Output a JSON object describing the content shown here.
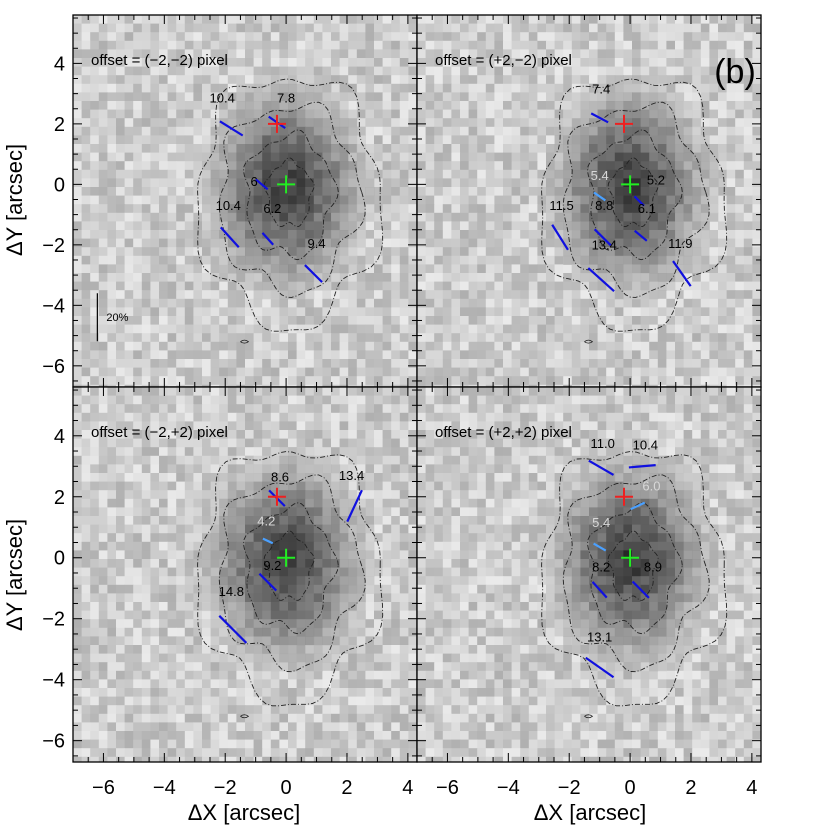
{
  "chart_data": {
    "type": "image-grid",
    "figure_tag": "(b)",
    "xlabel": "ΔX [arcsec]",
    "ylabel": "ΔY [arcsec]",
    "xlim": [
      -7,
      4.3
    ],
    "ylim": [
      -6.7,
      5.6
    ],
    "xticks": [
      -6,
      -4,
      -2,
      0,
      2,
      4
    ],
    "yticks": [
      -6,
      -4,
      -2,
      0,
      2,
      4
    ],
    "xtick_labels": [
      "−6",
      "−4",
      "−2",
      "0",
      "2",
      "4"
    ],
    "ytick_labels": [
      "−6",
      "−4",
      "−2",
      "0",
      "2",
      "4"
    ],
    "colors": {
      "vector": "#1010e0",
      "vector_light": "#4aa0ff",
      "label_dark": "#000000",
      "label_light": "#d8d8d8",
      "center_cross": "#22ee22",
      "secondary_cross": "#ee2020",
      "contour": "#222222"
    },
    "scale_bar": {
      "label": "20%"
    },
    "panels": [
      {
        "id": "a",
        "offset_label": "offset = (−2,−2) pixel",
        "center_cross": [
          0,
          0
        ],
        "secondary_cross": [
          -0.3,
          2.0
        ],
        "vectors": [
          {
            "x": -1.8,
            "y": 1.85,
            "pol": 10.4,
            "angle": -32,
            "label_dx": -0.3,
            "label_dy": 0.85,
            "light": false
          },
          {
            "x": -0.3,
            "y": 2.05,
            "pol": 7.8,
            "angle": -35,
            "label_dx": 0.3,
            "label_dy": 0.65,
            "light": false
          },
          {
            "x": -0.8,
            "y": 0.0,
            "pol": 6,
            "angle": -40,
            "label_dx": -0.25,
            "label_dy": -0.05,
            "light": false
          },
          {
            "x": -1.85,
            "y": -1.75,
            "pol": 10.4,
            "angle": -48,
            "label_dx": -0.05,
            "label_dy": 0.9,
            "light": false
          },
          {
            "x": -0.6,
            "y": -1.8,
            "pol": 6.2,
            "angle": -48,
            "label_dx": 0.15,
            "label_dy": 0.85,
            "light": false
          },
          {
            "x": 0.9,
            "y": -2.95,
            "pol": 9.4,
            "angle": -45,
            "label_dx": 0.1,
            "label_dy": 0.85,
            "light": false
          }
        ]
      },
      {
        "id": "b",
        "offset_label": "offset = (+2,−2) pixel",
        "center_cross": [
          0,
          0
        ],
        "secondary_cross": [
          -0.2,
          2.0
        ],
        "vectors": [
          {
            "x": -1.0,
            "y": 2.2,
            "pol": 7.4,
            "angle": -28,
            "label_dx": 0.05,
            "label_dy": 0.8,
            "light": false
          },
          {
            "x": -1.0,
            "y": -0.4,
            "pol": 5.4,
            "angle": -35,
            "label_dx": 0.0,
            "label_dy": 0.55,
            "light": true
          },
          {
            "x": 0.3,
            "y": -0.55,
            "pol": 5.2,
            "angle": -45,
            "label_dx": 0.55,
            "label_dy": 0.55,
            "light": false
          },
          {
            "x": -2.3,
            "y": -1.75,
            "pol": 11.5,
            "angle": -58,
            "label_dx": 0.05,
            "label_dy": 0.9,
            "light": false
          },
          {
            "x": -0.9,
            "y": -1.75,
            "pol": 8.8,
            "angle": -45,
            "label_dx": 0.05,
            "label_dy": 0.9,
            "light": false
          },
          {
            "x": 0.35,
            "y": -1.7,
            "pol": 6.1,
            "angle": -40,
            "label_dx": 0.2,
            "label_dy": 0.75,
            "light": false
          },
          {
            "x": -0.95,
            "y": -3.15,
            "pol": 13.4,
            "angle": -42,
            "label_dx": 0.1,
            "label_dy": 1.0,
            "light": false
          },
          {
            "x": 1.7,
            "y": -2.95,
            "pol": 11.9,
            "angle": -55,
            "label_dx": -0.05,
            "label_dy": 0.85,
            "light": false
          }
        ]
      },
      {
        "id": "c",
        "offset_label": "offset = (−2,+2) pixel",
        "center_cross": [
          0,
          0
        ],
        "secondary_cross": [
          -0.3,
          2.0
        ],
        "vectors": [
          {
            "x": -0.3,
            "y": 1.95,
            "pol": 8.6,
            "angle": -45,
            "label_dx": 0.1,
            "label_dy": 0.55,
            "light": false
          },
          {
            "x": 2.25,
            "y": 1.7,
            "pol": 13.4,
            "angle": 65,
            "label_dx": -0.1,
            "label_dy": 0.85,
            "light": false
          },
          {
            "x": -0.6,
            "y": 0.55,
            "pol": 4.2,
            "angle": -25,
            "label_dx": -0.05,
            "label_dy": 0.5,
            "light": true
          },
          {
            "x": -0.6,
            "y": -0.8,
            "pol": 9.2,
            "angle": -45,
            "label_dx": 0.15,
            "label_dy": 0.4,
            "light": false
          },
          {
            "x": -1.75,
            "y": -2.35,
            "pol": 14.8,
            "angle": -45,
            "label_dx": -0.05,
            "label_dy": 1.1,
            "light": false
          }
        ]
      },
      {
        "id": "d",
        "offset_label": "offset = (+2,+2) pixel",
        "center_cross": [
          0,
          0
        ],
        "secondary_cross": [
          -0.2,
          2.0
        ],
        "vectors": [
          {
            "x": -0.95,
            "y": 2.95,
            "pol": 11.0,
            "angle": -30,
            "label_dx": 0.05,
            "label_dy": 0.65,
            "light": false
          },
          {
            "x": 0.4,
            "y": 3.0,
            "pol": 10.4,
            "angle": 5,
            "label_dx": 0.1,
            "label_dy": 0.55,
            "light": false
          },
          {
            "x": 0.25,
            "y": 1.7,
            "pol": 6.0,
            "angle": 25,
            "label_dx": 0.45,
            "label_dy": 0.5,
            "light": true
          },
          {
            "x": -1.0,
            "y": 0.35,
            "pol": 5.4,
            "angle": -30,
            "label_dx": 0.05,
            "label_dy": 0.65,
            "light": true
          },
          {
            "x": -1.0,
            "y": -1.05,
            "pol": 8.2,
            "angle": -48,
            "label_dx": 0.05,
            "label_dy": 0.6,
            "light": false
          },
          {
            "x": 0.35,
            "y": -1.05,
            "pol": 8.9,
            "angle": -45,
            "label_dx": 0.4,
            "label_dy": 0.6,
            "light": false
          },
          {
            "x": -1.0,
            "y": -3.6,
            "pol": 13.1,
            "angle": -35,
            "label_dx": 0.0,
            "label_dy": 0.85,
            "light": false
          }
        ]
      }
    ]
  }
}
